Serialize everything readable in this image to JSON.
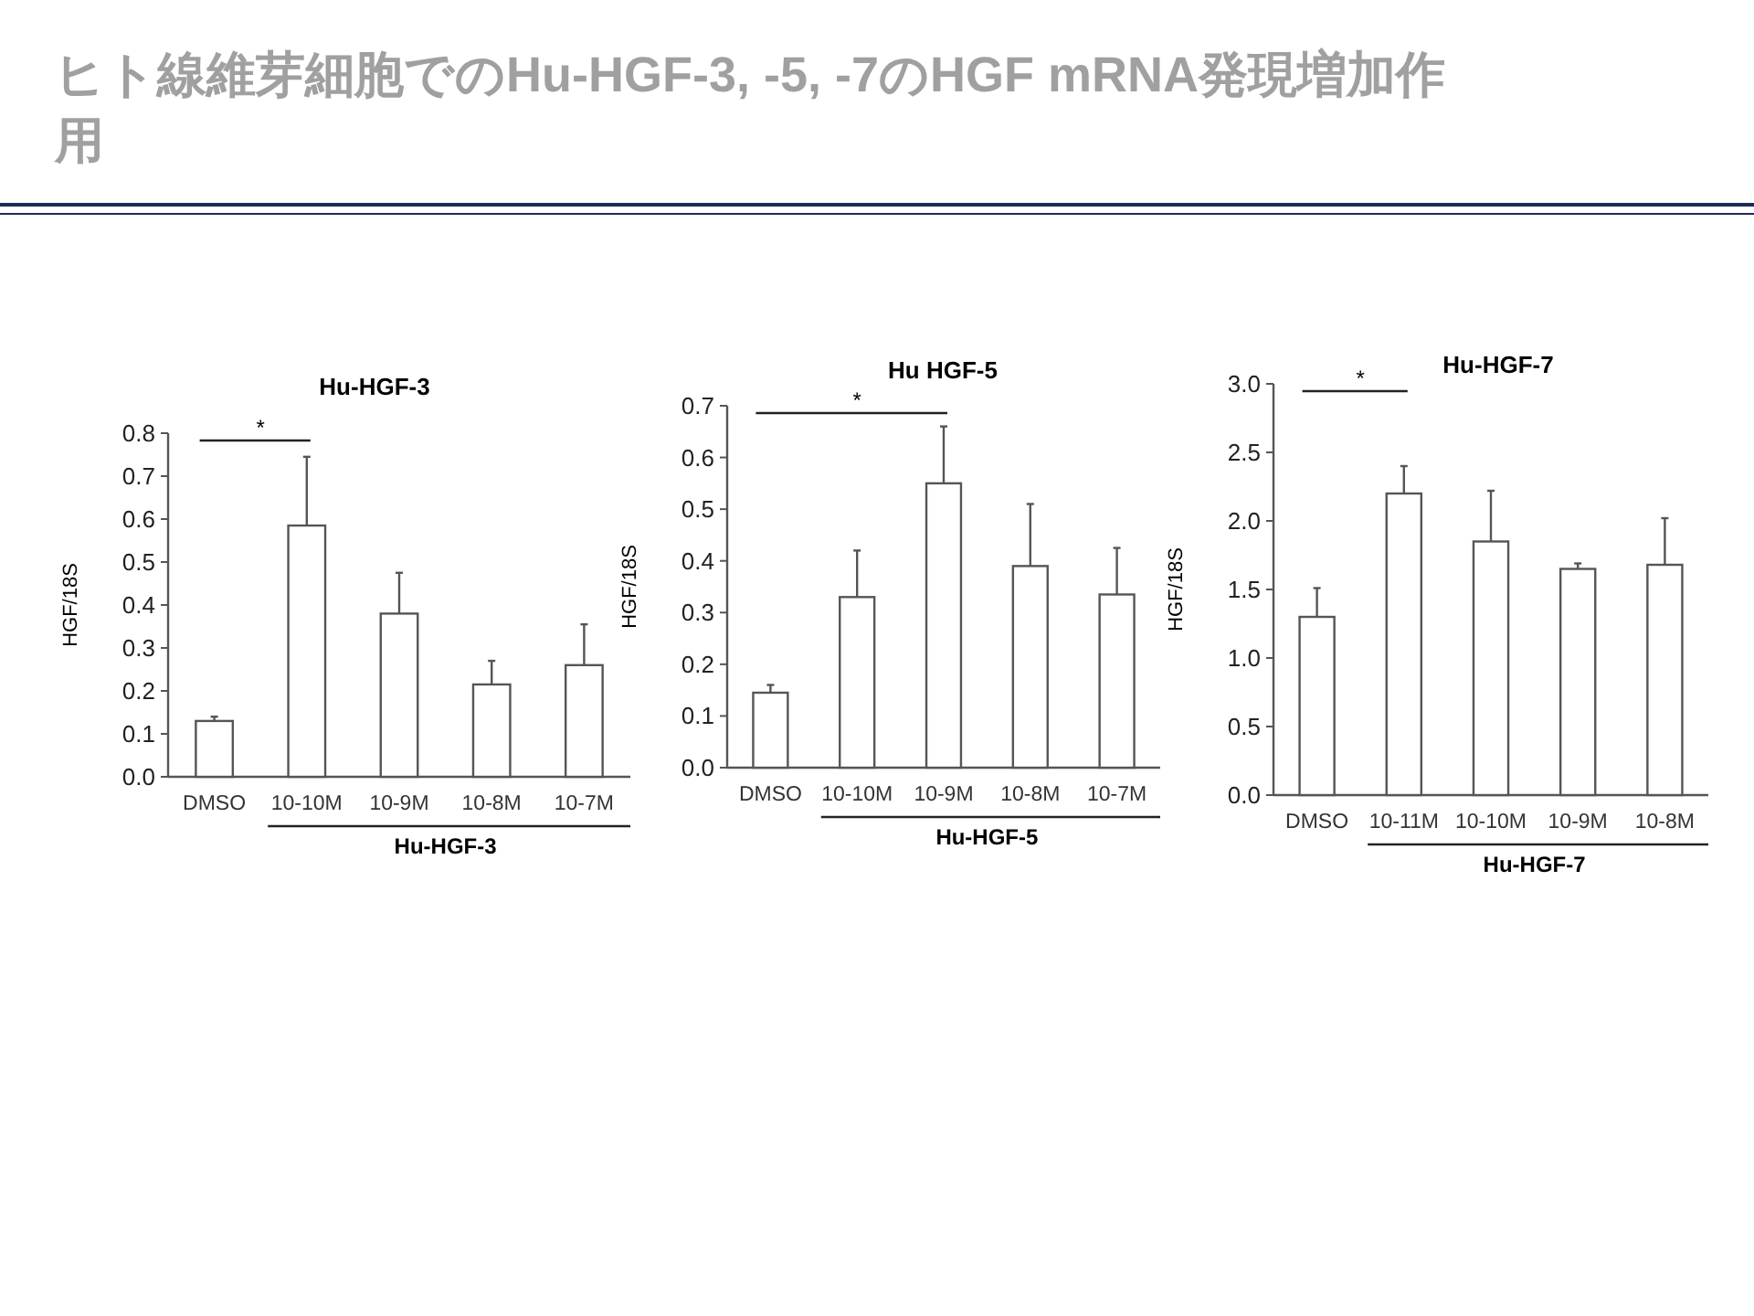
{
  "chart_data": [
    {
      "type": "other",
      "title": "ヒト線維芽細胞でのHu-HGF-3, -5, -7のHGF mRNA発現増加作用"
    },
    {
      "type": "bar",
      "title": "Hu-HGF-3",
      "ylabel": "HGF/18S",
      "categories": [
        "DMSO",
        "10-10M",
        "10-9M",
        "10-8M",
        "10-7M"
      ],
      "values": [
        0.13,
        0.585,
        0.38,
        0.215,
        0.26
      ],
      "color": "#ffffff",
      "errors": [
        [
          0.13,
          0.14
        ],
        [
          0.585,
          0.745
        ],
        [
          0.38,
          0.475
        ],
        [
          0.215,
          0.27
        ],
        [
          0.26,
          0.355
        ]
      ],
      "ylim": [
        0,
        0.8
      ],
      "yticks": [
        {
          "value": 0,
          "label": "0.0"
        },
        0.1,
        0.2,
        0.3,
        0.4,
        0.5,
        0.6,
        0.7,
        0.8
      ],
      "annotations": [
        "*",
        "Hu-HGF-3"
      ],
      "grid": false
    },
    {
      "type": "bar",
      "title": "Hu HGF-5",
      "ylabel": "HGF/18S",
      "categories": [
        "DMSO",
        "10-10M",
        "10-9M",
        "10-8M",
        "10-7M"
      ],
      "values": [
        0.145,
        0.33,
        0.55,
        0.39,
        0.335
      ],
      "color": "#ffffff",
      "errors": [
        [
          0.145,
          0.16
        ],
        [
          0.33,
          0.42
        ],
        [
          0.55,
          0.66
        ],
        [
          0.39,
          0.51
        ],
        [
          0.335,
          0.425
        ]
      ],
      "ylim": [
        0,
        0.7
      ],
      "yticks": [
        {
          "value": 0,
          "label": "0.0"
        },
        0.1,
        0.2,
        0.3,
        0.4,
        0.5,
        0.6,
        0.7
      ],
      "annotations": [
        "*",
        "Hu-HGF-5"
      ],
      "grid": false
    },
    {
      "type": "bar",
      "title": "Hu-HGF-7",
      "ylabel": "HGF/18S",
      "categories": [
        "DMSO",
        "10-11M",
        "10-10M",
        "10-9M",
        "10-8M"
      ],
      "values": [
        1.3,
        2.2,
        1.85,
        1.65,
        1.68
      ],
      "color": "#ffffff",
      "errors": [
        [
          1.3,
          1.51
        ],
        [
          2.2,
          2.4
        ],
        [
          1.85,
          2.22
        ],
        [
          1.65,
          1.69
        ],
        [
          1.68,
          2.02
        ]
      ],
      "ylim": [
        0,
        3.0
      ],
      "yticks": [
        {
          "value": 0,
          "label": "0.0"
        },
        {
          "value": 0.5,
          "label": "0.5"
        },
        {
          "value": 1,
          "label": "1.0"
        },
        {
          "value": 1.5,
          "label": "1.5"
        },
        {
          "value": 2,
          "label": "2.0"
        },
        {
          "value": 2.5,
          "label": "2.5"
        },
        {
          "value": 3,
          "label": "3.0"
        }
      ],
      "annotations": [
        "*",
        "Hu-HGF-7"
      ],
      "grid": false
    }
  ]
}
